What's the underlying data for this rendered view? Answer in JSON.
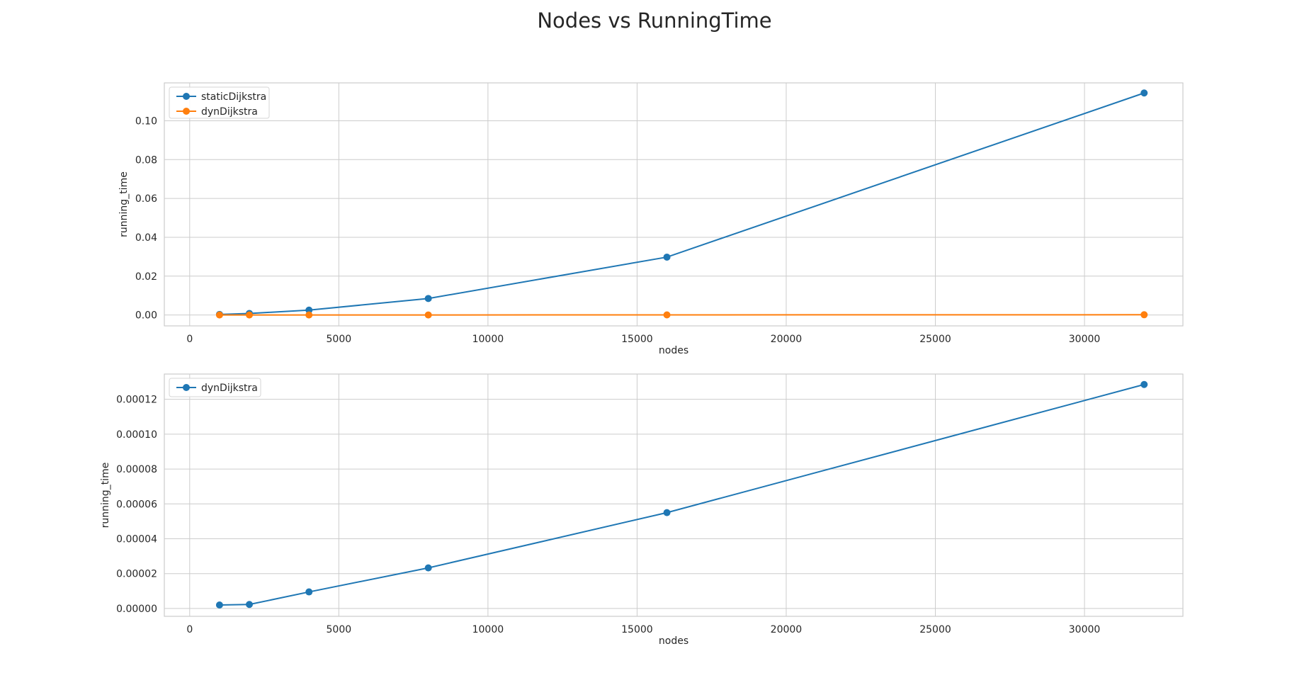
{
  "title": "Nodes vs RunningTime",
  "chart_data": [
    {
      "type": "line",
      "xlabel": "nodes",
      "ylabel": "running_time",
      "xlim": [
        -850,
        33300
      ],
      "ylim": [
        -0.0056,
        0.1195
      ],
      "grid": true,
      "legend_position": "top-left",
      "x_ticks": [
        0,
        5000,
        10000,
        15000,
        20000,
        25000,
        30000
      ],
      "x_tick_labels": [
        "0",
        "5000",
        "10000",
        "15000",
        "20000",
        "25000",
        "30000"
      ],
      "y_ticks": [
        0.0,
        0.02,
        0.04,
        0.06,
        0.08,
        0.1
      ],
      "y_tick_labels": [
        "0.00",
        "0.02",
        "0.04",
        "0.06",
        "0.08",
        "0.10"
      ],
      "x": [
        1000,
        2000,
        4000,
        8000,
        16000,
        32000
      ],
      "series": [
        {
          "name": "staticDijkstra",
          "color": "#1f77b4",
          "values": [
            0.0003,
            0.0008,
            0.0025,
            0.0085,
            0.0298,
            0.1143
          ]
        },
        {
          "name": "dynDijkstra",
          "color": "#ff7f0e",
          "values": [
            1.6e-06,
            2.3e-06,
            9.3e-06,
            2.33e-05,
            5.5e-05,
            0.000129
          ]
        }
      ]
    },
    {
      "type": "line",
      "xlabel": "nodes",
      "ylabel": "running_time",
      "xlim": [
        -850,
        33300
      ],
      "ylim": [
        -4.5e-06,
        0.0001345
      ],
      "grid": true,
      "legend_position": "top-left",
      "x_ticks": [
        0,
        5000,
        10000,
        15000,
        20000,
        25000,
        30000
      ],
      "x_tick_labels": [
        "0",
        "5000",
        "10000",
        "15000",
        "20000",
        "25000",
        "30000"
      ],
      "y_ticks": [
        0.0,
        2e-05,
        4e-05,
        6e-05,
        8e-05,
        0.0001,
        0.00012
      ],
      "y_tick_labels": [
        "0.00000",
        "0.00002",
        "0.00004",
        "0.00006",
        "0.00008",
        "0.00010",
        "0.00012"
      ],
      "x": [
        1000,
        2000,
        4000,
        8000,
        16000,
        32000
      ],
      "series": [
        {
          "name": "dynDijkstra",
          "color": "#1f77b4",
          "values": [
            2e-06,
            2.3e-06,
            9.5e-06,
            2.33e-05,
            5.5e-05,
            0.0001285
          ]
        }
      ]
    }
  ]
}
